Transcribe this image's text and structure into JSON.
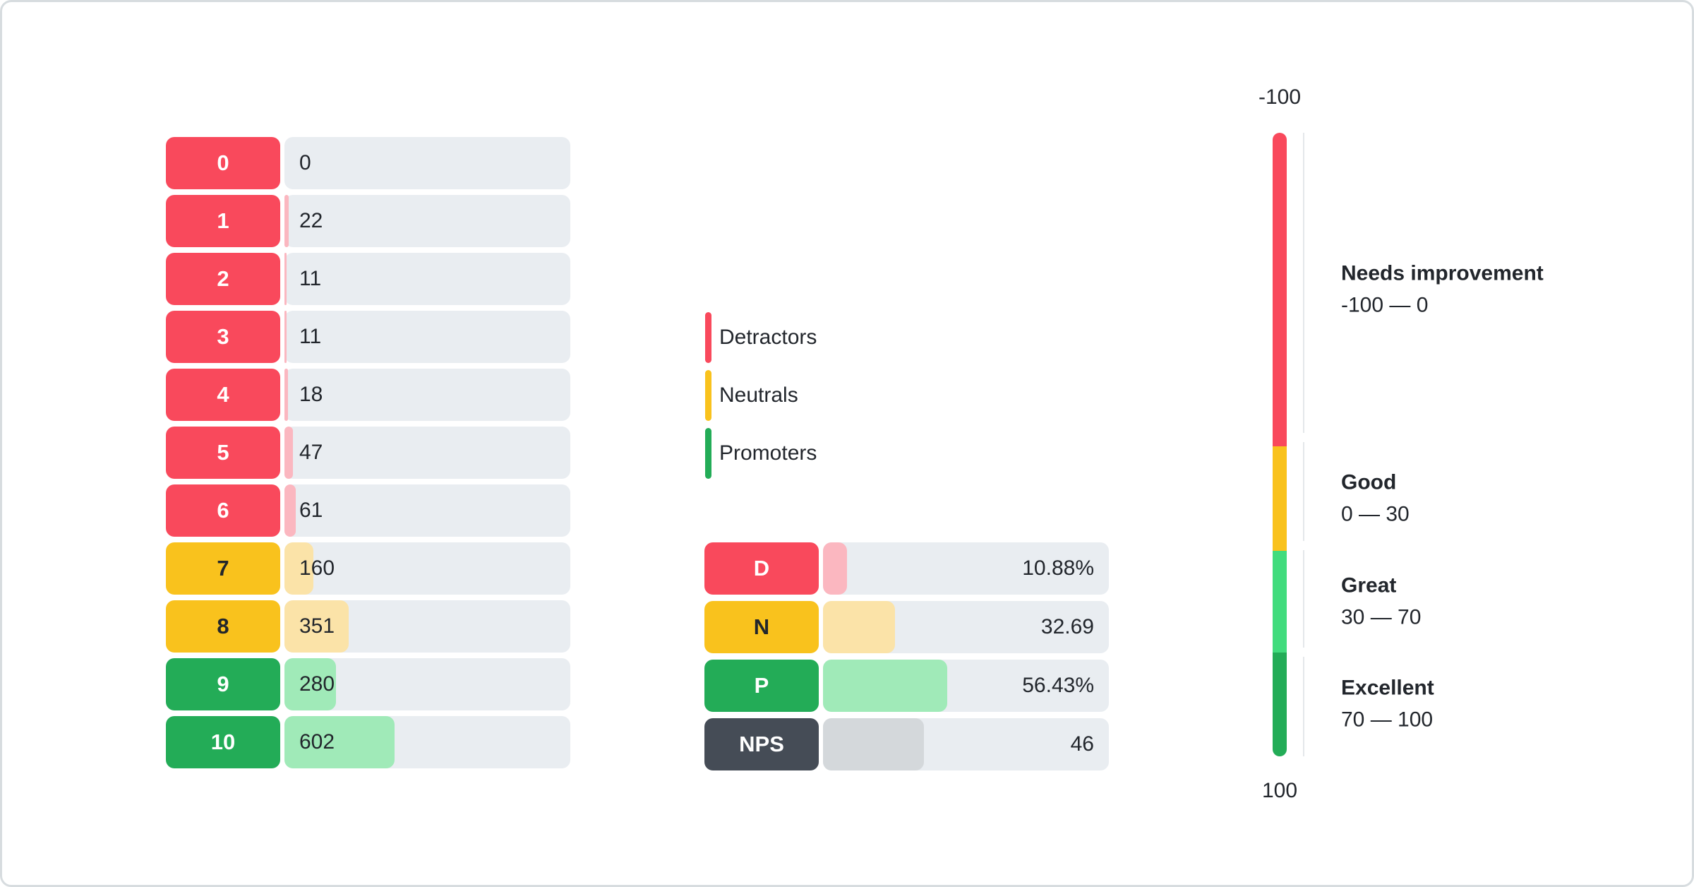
{
  "colors": {
    "detractor": "#F9495C",
    "detractor_light": "#FBB7C0",
    "neutral": "#F9C21D",
    "neutral_light": "#FBE3A8",
    "promoter": "#23AC57",
    "promoter_light": "#A0EAB8",
    "great": "#41DC7D",
    "nps": "#454C56",
    "nps_light": "#D4D8DB",
    "track": "#E9EDF1",
    "axis": "#E4E7EA",
    "text": "#22262C",
    "card_border": "#D7DCDF"
  },
  "chart_data": {
    "distribution": {
      "type": "bar",
      "categories": [
        "0",
        "1",
        "2",
        "3",
        "4",
        "5",
        "6",
        "7",
        "8",
        "9",
        "10"
      ],
      "values": [
        0,
        22,
        11,
        11,
        18,
        47,
        61,
        160,
        351,
        280,
        602
      ],
      "groups": [
        "detractor",
        "detractor",
        "detractor",
        "detractor",
        "detractor",
        "detractor",
        "detractor",
        "neutral",
        "neutral",
        "promoter",
        "promoter"
      ]
    },
    "legend": {
      "items": [
        {
          "label": "Detractors",
          "group": "detractor"
        },
        {
          "label": "Neutrals",
          "group": "neutral"
        },
        {
          "label": "Promoters",
          "group": "promoter"
        }
      ]
    },
    "summary": {
      "type": "bar",
      "categories": [
        "D",
        "N",
        "P",
        "NPS"
      ],
      "values": [
        10.88,
        32.69,
        56.43,
        46
      ],
      "value_labels": [
        "10.88%",
        "32.69",
        "56.43%",
        "46"
      ],
      "groups": [
        "detractor",
        "neutral",
        "promoter",
        "nps"
      ],
      "scale_max": 130
    },
    "gauge": {
      "type": "gauge",
      "min": -100,
      "max": 100,
      "min_label": "-100",
      "max_label": "100",
      "bands": [
        {
          "title": "Needs improvement",
          "range_label": "-100 — 0",
          "from": -100,
          "to": 0,
          "group": "detractor",
          "display_height_pct": 50.3
        },
        {
          "title": "Good",
          "range_label": "0 — 30",
          "from": 0,
          "to": 30,
          "group": "neutral",
          "display_height_pct": 16.7
        },
        {
          "title": "Great",
          "range_label": "30 — 70",
          "from": 30,
          "to": 70,
          "group": "great",
          "display_height_pct": 16.3
        },
        {
          "title": "Excellent",
          "range_label": "70 — 100",
          "from": 70,
          "to": 100,
          "group": "promoter",
          "display_height_pct": 16.7
        }
      ]
    }
  }
}
